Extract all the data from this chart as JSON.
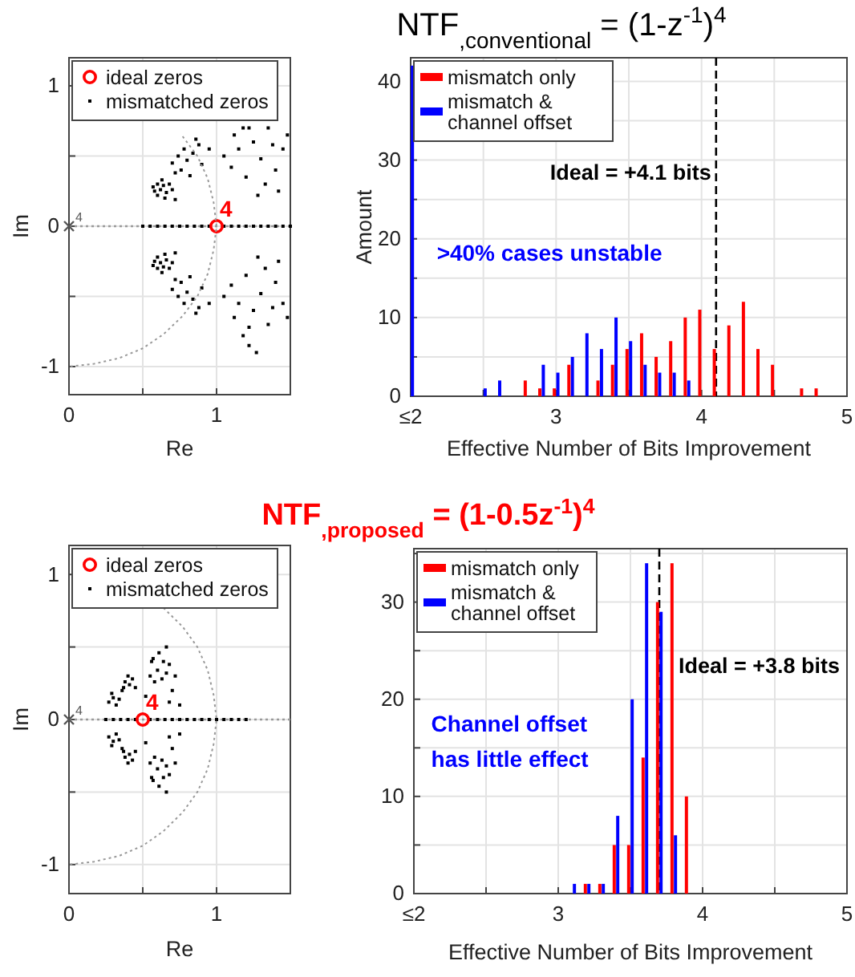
{
  "chart_data": [
    {
      "type": "scatter",
      "xlabel": "Re",
      "ylabel": "Im",
      "xlim": [
        0,
        1.5
      ],
      "ylim": [
        -1.2,
        1.2
      ],
      "xticks": [
        0,
        {
          "value": 0.5,
          "label": null
        },
        1
      ],
      "yticks": [
        -1,
        {
          "value": -0.5,
          "label": null
        },
        0,
        {
          "value": 0.5,
          "label": null
        },
        1
      ],
      "grid": true,
      "legend": "top left",
      "ref_lines": [
        {
          "axis": "y",
          "value": 0,
          "color": "#999999",
          "line_style": "dotted"
        }
      ],
      "annotations": [
        {
          "text": "4",
          "x": 1,
          "y": 0
        },
        {
          "text": "4",
          "x": 0,
          "y": 0
        }
      ],
      "series": [
        {
          "type": "line",
          "color": "#999999",
          "line_style": "dotted",
          "x": [
            0.77,
            0.87,
            0.94,
            0.98,
            1,
            0.98,
            0.94,
            0.87,
            0.77,
            0.64,
            0.5,
            0.34,
            0.17,
            0
          ],
          "values": [
            0.64,
            0.5,
            0.34,
            0.17,
            0,
            -0.17,
            -0.34,
            -0.5,
            -0.64,
            -0.77,
            -0.87,
            -0.94,
            -0.98,
            -1
          ]
        },
        {
          "name": "ideal zeros",
          "color": "#ff0000",
          "marker": "circle",
          "x": [
            1
          ],
          "values": [
            0
          ]
        },
        {
          "name": "mismatched zeros",
          "color": "#000000",
          "marker": "square",
          "x": [
            0.57,
            0.6,
            0.62,
            0.64,
            0.66,
            0.6,
            0.68,
            0.65,
            0.7,
            0.58,
            0.63,
            0.72,
            0.7,
            0.74,
            0.78,
            0.8,
            0.84,
            0.88,
            0.9,
            0.76,
            0.82,
            0.86,
            0.95,
            0.72,
            1.05,
            1.1,
            1.15,
            1.2,
            1.25,
            1.3,
            1.35,
            1.4,
            1.45,
            1.22,
            1.12,
            1.33,
            1.42,
            1.28,
            1.48,
            1.38,
            1.18,
            0.57,
            0.6,
            0.62,
            0.64,
            0.66,
            0.6,
            0.68,
            0.65,
            0.7,
            0.58,
            0.63,
            0.72,
            0.7,
            0.74,
            0.78,
            0.8,
            0.84,
            0.88,
            0.9,
            0.76,
            0.82,
            0.86,
            0.95,
            0.72,
            1.05,
            1.1,
            1.15,
            1.2,
            1.25,
            1.3,
            1.35,
            1.4,
            1.45,
            1.22,
            1.12,
            1.33,
            1.42,
            1.28,
            1.48,
            1.38,
            1.18,
            1.27,
            1.22,
            0.5,
            0.55,
            0.6,
            0.65,
            0.7,
            0.75,
            0.8,
            0.85,
            0.9,
            0.95,
            1.05,
            1.1,
            1.15,
            1.2,
            1.25,
            1.3,
            1.35,
            1.4,
            1.45,
            1.5
          ],
          "values": [
            0.28,
            0.3,
            0.26,
            0.29,
            0.24,
            0.22,
            0.3,
            0.2,
            0.26,
            0.25,
            0.33,
            0.19,
            0.45,
            0.5,
            0.55,
            0.47,
            0.52,
            0.58,
            0.44,
            0.4,
            0.36,
            0.62,
            0.55,
            0.38,
            0.5,
            0.42,
            0.55,
            0.35,
            0.6,
            0.48,
            0.7,
            0.4,
            0.55,
            0.7,
            0.65,
            0.3,
            0.25,
            0.22,
            0.65,
            0.58,
            0.7,
            -0.28,
            -0.3,
            -0.26,
            -0.29,
            -0.24,
            -0.22,
            -0.3,
            -0.2,
            -0.26,
            -0.25,
            -0.33,
            -0.19,
            -0.45,
            -0.5,
            -0.55,
            -0.47,
            -0.52,
            -0.58,
            -0.44,
            -0.4,
            -0.36,
            -0.62,
            -0.55,
            -0.38,
            -0.5,
            -0.42,
            -0.55,
            -0.35,
            -0.6,
            -0.48,
            -0.7,
            -0.4,
            -0.55,
            -0.72,
            -0.65,
            -0.3,
            -0.25,
            -0.22,
            -0.65,
            -0.58,
            -0.78,
            -0.9,
            -0.85,
            0,
            0,
            0,
            0,
            0,
            0,
            0,
            0,
            0,
            0,
            0,
            0,
            0,
            0,
            0,
            0,
            0,
            0,
            0,
            0
          ]
        },
        {
          "color": "#555555",
          "marker": "cross",
          "x": [
            0
          ],
          "values": [
            0
          ]
        }
      ]
    },
    {
      "type": "bar",
      "title": "NTF$_{,conventional}$ = (1-z$^{-1}$)$^{4}$",
      "xlabel": "Effective Number of Bits Improvement",
      "ylabel": "Amount",
      "xlim": [
        2,
        5
      ],
      "ylim": [
        0,
        43
      ],
      "xticks": [
        {
          "value": 2,
          "label": "≤2"
        },
        {
          "value": 2.5,
          "label": null
        },
        3,
        {
          "value": 3.5,
          "label": null
        },
        4,
        {
          "value": 4.5,
          "label": null
        },
        5
      ],
      "yticks": [
        0,
        {
          "value": 5,
          "label": null
        },
        10,
        {
          "value": 15,
          "label": null
        },
        20,
        {
          "value": 25,
          "label": null
        },
        30,
        {
          "value": 35,
          "label": null
        },
        40
      ],
      "grid": true,
      "legend": "top left",
      "x": [
        2.0,
        2.5,
        2.6,
        2.8,
        2.9,
        3.0,
        3.1,
        3.2,
        3.3,
        3.4,
        3.5,
        3.6,
        3.7,
        3.8,
        3.9,
        4.0,
        4.1,
        4.2,
        4.3,
        4.4,
        4.5,
        4.7,
        4.8
      ],
      "series": [
        {
          "name": "mismatch only",
          "color": "#ff0000",
          "values": [
            null,
            null,
            null,
            2,
            1,
            1,
            4,
            null,
            2,
            4,
            6,
            8,
            5,
            7,
            10,
            11,
            6,
            9,
            12,
            6,
            4,
            1,
            1
          ]
        },
        {
          "name": "mismatch & channel offset",
          "color": "#0000ff",
          "values": [
            42,
            1,
            2,
            null,
            4,
            3,
            5,
            8,
            6,
            10,
            7,
            4,
            3,
            3,
            2,
            null,
            null,
            null,
            null,
            null,
            null,
            null,
            null
          ]
        }
      ],
      "ref_lines": [
        {
          "axis": "x",
          "value": 4.1,
          "label": "Ideal = +4.1 bits",
          "color": "#000000",
          "line_style": "dashed"
        }
      ],
      "annotations": [
        ">40% cases unstable"
      ]
    },
    {
      "type": "scatter",
      "xlabel": "Re",
      "ylabel": "Im",
      "xlim": [
        0,
        1.5
      ],
      "ylim": [
        -1.2,
        1.2
      ],
      "xticks": [
        0,
        {
          "value": 0.5,
          "label": null
        },
        1
      ],
      "yticks": [
        -1,
        {
          "value": -0.5,
          "label": null
        },
        0,
        {
          "value": 0.5,
          "label": null
        },
        1
      ],
      "grid": true,
      "legend": "top left",
      "ref_lines": [
        {
          "axis": "y",
          "value": 0,
          "color": "#999999",
          "line_style": "dotted"
        }
      ],
      "annotations": [
        {
          "text": "4",
          "x": 0.5,
          "y": 0
        },
        {
          "text": "4",
          "x": 0,
          "y": 0
        }
      ],
      "series": [
        {
          "type": "line",
          "color": "#999999",
          "line_style": "dotted",
          "x": [
            0.64,
            0.77,
            0.87,
            0.94,
            0.98,
            1,
            0.98,
            0.94,
            0.87,
            0.77,
            0.64,
            0.5,
            0.34,
            0.17,
            0
          ],
          "values": [
            0.77,
            0.64,
            0.5,
            0.34,
            0.17,
            0,
            -0.17,
            -0.34,
            -0.5,
            -0.64,
            -0.77,
            -0.87,
            -0.94,
            -0.98,
            -1
          ]
        },
        {
          "name": "ideal zeros",
          "color": "#ff0000",
          "marker": "circle",
          "x": [
            0.5
          ],
          "values": [
            0
          ]
        },
        {
          "name": "mismatched zeros",
          "color": "#000000",
          "marker": "square",
          "x": [
            0.27,
            0.3,
            0.32,
            0.29,
            0.34,
            0.36,
            0.38,
            0.41,
            0.43,
            0.4,
            0.45,
            0.37,
            0.55,
            0.58,
            0.6,
            0.63,
            0.66,
            0.57,
            0.61,
            0.64,
            0.68,
            0.72,
            0.7,
            0.75,
            0.52,
            0.56,
            0.66,
            0.68,
            0.27,
            0.3,
            0.32,
            0.29,
            0.34,
            0.36,
            0.38,
            0.41,
            0.43,
            0.4,
            0.45,
            0.37,
            0.55,
            0.58,
            0.6,
            0.63,
            0.66,
            0.57,
            0.61,
            0.64,
            0.68,
            0.72,
            0.7,
            0.75,
            0.52,
            0.56,
            0.66,
            0.68,
            0.25,
            0.3,
            0.35,
            0.4,
            0.45,
            0.55,
            0.6,
            0.65,
            0.7,
            0.75,
            0.8,
            0.85,
            0.9,
            0.95,
            1.0,
            1.05,
            1.1,
            1.15,
            1.2
          ],
          "values": [
            0.12,
            0.15,
            0.1,
            0.18,
            0.14,
            0.2,
            0.26,
            0.24,
            0.28,
            0.3,
            0.22,
            0.22,
            0.3,
            0.26,
            0.34,
            0.28,
            0.32,
            0.42,
            0.46,
            0.4,
            0.38,
            0.3,
            0.2,
            0.1,
            0.16,
            0.4,
            0.5,
            0.12,
            -0.12,
            -0.15,
            -0.1,
            -0.18,
            -0.14,
            -0.2,
            -0.26,
            -0.24,
            -0.28,
            -0.3,
            -0.22,
            -0.22,
            -0.3,
            -0.26,
            -0.34,
            -0.28,
            -0.32,
            -0.42,
            -0.46,
            -0.4,
            -0.38,
            -0.3,
            -0.2,
            -0.1,
            -0.16,
            -0.4,
            -0.5,
            -0.12,
            0,
            0,
            0,
            0,
            0,
            0,
            0,
            0,
            0,
            0,
            0,
            0,
            0,
            0,
            0,
            0,
            0,
            0,
            0
          ]
        },
        {
          "color": "#555555",
          "marker": "cross",
          "x": [
            0
          ],
          "values": [
            0
          ]
        }
      ]
    },
    {
      "type": "bar",
      "title": "NTF$_{,proposed}$ =  (1-0.5z$^{-1}$)$^{4}$",
      "xlabel": "Effective Number of Bits Improvement",
      "xlim": [
        2,
        5
      ],
      "ylim": [
        0,
        35.5
      ],
      "xticks": [
        {
          "value": 2,
          "label": "≤2"
        },
        {
          "value": 2.5,
          "label": null
        },
        3,
        {
          "value": 3.5,
          "label": null
        },
        4,
        {
          "value": 4.5,
          "label": null
        },
        5
      ],
      "yticks": [
        0,
        {
          "value": 5,
          "label": null
        },
        10,
        {
          "value": 15,
          "label": null
        },
        20,
        {
          "value": 25,
          "label": null
        },
        30,
        {
          "value": 35,
          "label": null
        }
      ],
      "grid": true,
      "legend": "top left",
      "x": [
        3.1,
        3.2,
        3.3,
        3.4,
        3.5,
        3.6,
        3.7,
        3.8,
        3.9
      ],
      "series": [
        {
          "name": "mismatch only",
          "color": "#ff0000",
          "values": [
            null,
            1,
            1,
            5,
            5,
            14,
            30,
            34,
            10
          ]
        },
        {
          "name": "mismatch & channel offset",
          "color": "#0000ff",
          "values": [
            1,
            1,
            1,
            8,
            20,
            34,
            29,
            6,
            null
          ]
        }
      ],
      "ref_lines": [
        {
          "axis": "x",
          "value": 3.7,
          "label": "Ideal = +3.8 bits",
          "color": "#000000",
          "line_style": "dashed"
        }
      ],
      "annotations": [
        "Channel offset has little effect"
      ]
    }
  ]
}
